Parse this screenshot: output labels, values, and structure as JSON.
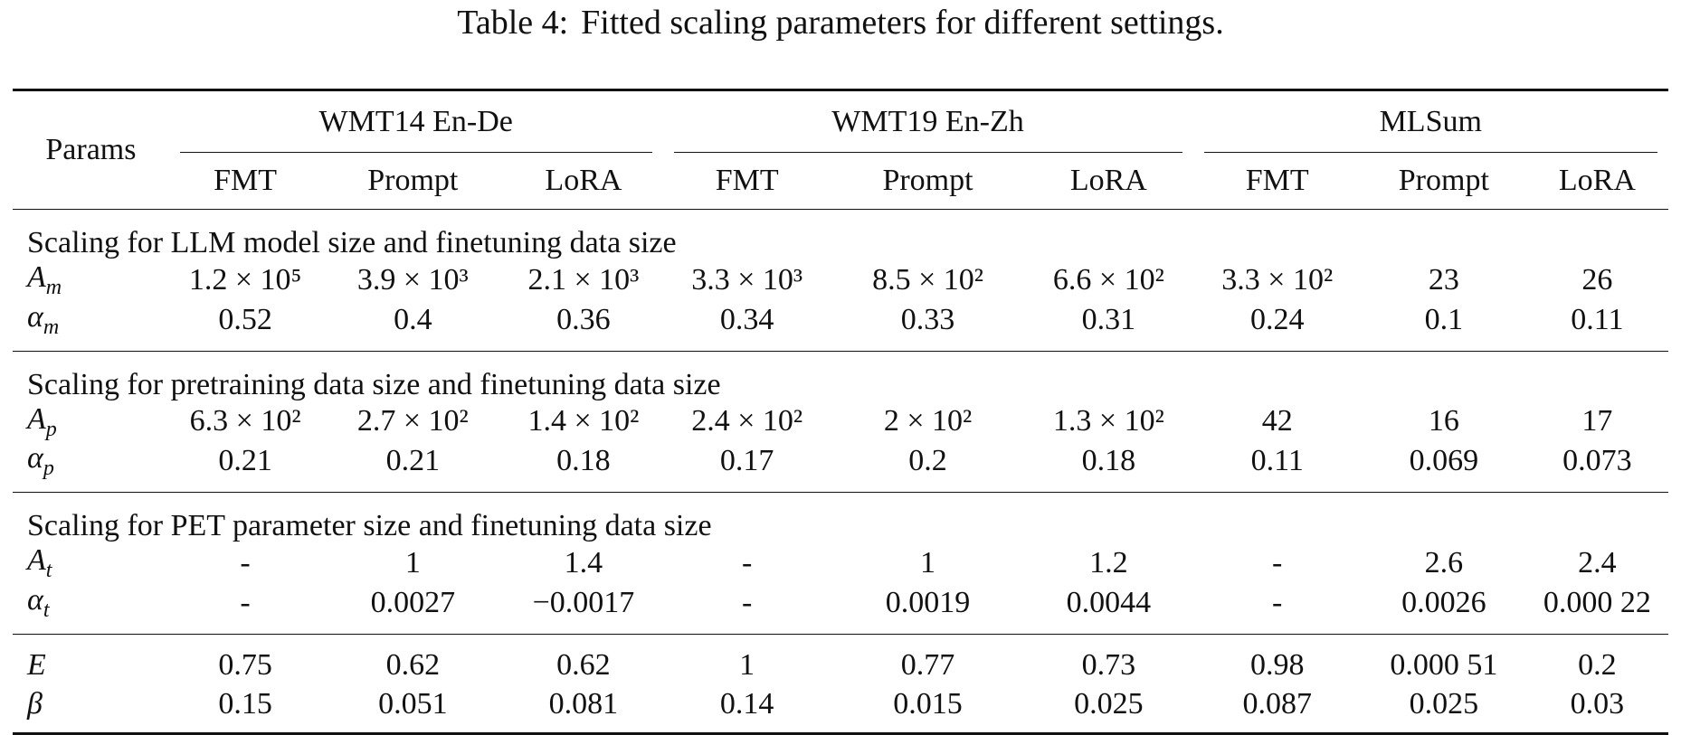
{
  "caption": {
    "label": "Table 4:",
    "text": "Fitted scaling parameters for different settings."
  },
  "table": {
    "params_header": "Params",
    "groups": [
      "WMT14 En-De",
      "WMT19 En-Zh",
      "MLSum"
    ],
    "methods": [
      "FMT",
      "Prompt",
      "LoRA",
      "FMT",
      "Prompt",
      "LoRA",
      "FMT",
      "Prompt",
      "LoRA"
    ],
    "sections": [
      {
        "title": "Scaling for LLM model size and finetuning data size",
        "rows": [
          {
            "symbol": "A",
            "sub": "m",
            "values": [
              "1.2 × 10⁵",
              "3.9 × 10³",
              "2.1 × 10³",
              "3.3 × 10³",
              "8.5 × 10²",
              "6.6 × 10²",
              "3.3 × 10²",
              "23",
              "26"
            ]
          },
          {
            "symbol": "α",
            "sub": "m",
            "values": [
              "0.52",
              "0.4",
              "0.36",
              "0.34",
              "0.33",
              "0.31",
              "0.24",
              "0.1",
              "0.11"
            ]
          }
        ]
      },
      {
        "title": "Scaling for pretraining data size and finetuning data size",
        "rows": [
          {
            "symbol": "A",
            "sub": "p",
            "values": [
              "6.3 × 10²",
              "2.7 × 10²",
              "1.4 × 10²",
              "2.4 × 10²",
              "2 × 10²",
              "1.3 × 10²",
              "42",
              "16",
              "17"
            ]
          },
          {
            "symbol": "α",
            "sub": "p",
            "values": [
              "0.21",
              "0.21",
              "0.18",
              "0.17",
              "0.2",
              "0.18",
              "0.11",
              "0.069",
              "0.073"
            ]
          }
        ]
      },
      {
        "title": "Scaling for PET parameter size and finetuning data size",
        "rows": [
          {
            "symbol": "A",
            "sub": "t",
            "values": [
              "-",
              "1",
              "1.4",
              "-",
              "1",
              "1.2",
              "-",
              "2.6",
              "2.4"
            ]
          },
          {
            "symbol": "α",
            "sub": "t",
            "values": [
              "-",
              "0.0027",
              "−0.0017",
              "-",
              "0.0019",
              "0.0044",
              "-",
              "0.0026",
              "0.000 22"
            ]
          }
        ]
      }
    ],
    "final_rows": [
      {
        "symbol": "E",
        "sub": "",
        "values": [
          "0.75",
          "0.62",
          "0.62",
          "1",
          "0.77",
          "0.73",
          "0.98",
          "0.000 51",
          "0.2"
        ]
      },
      {
        "symbol": "β",
        "sub": "",
        "values": [
          "0.15",
          "0.051",
          "0.081",
          "0.14",
          "0.015",
          "0.025",
          "0.087",
          "0.025",
          "0.03"
        ]
      }
    ]
  }
}
